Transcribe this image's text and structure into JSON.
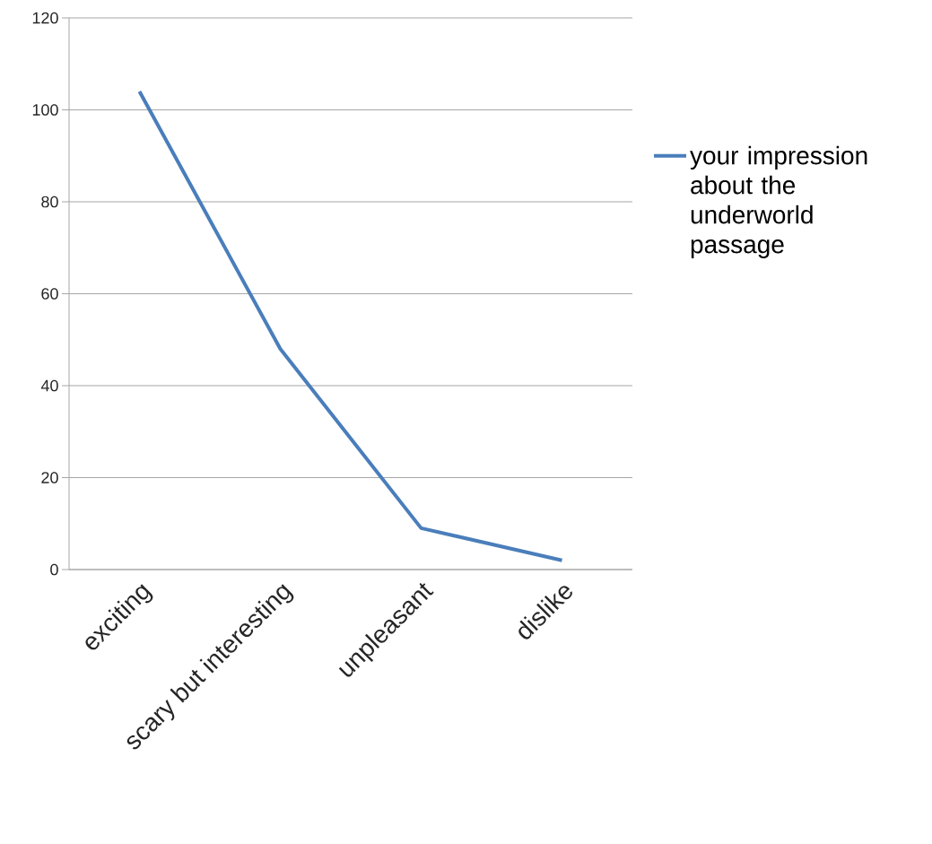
{
  "chart_data": {
    "type": "line",
    "categories": [
      "exciting",
      "scary but interesting",
      "unpleasant",
      "dislike"
    ],
    "series": [
      {
        "name": "your impression about the underworld passage",
        "color": "#4a7ebb",
        "values": [
          104,
          48,
          9,
          2
        ]
      }
    ],
    "ylim": [
      0,
      120
    ],
    "yticks": [
      0,
      20,
      40,
      60,
      80,
      100,
      120
    ],
    "grid": "y",
    "legend": "right",
    "marker": "none",
    "line_style": "solid"
  }
}
